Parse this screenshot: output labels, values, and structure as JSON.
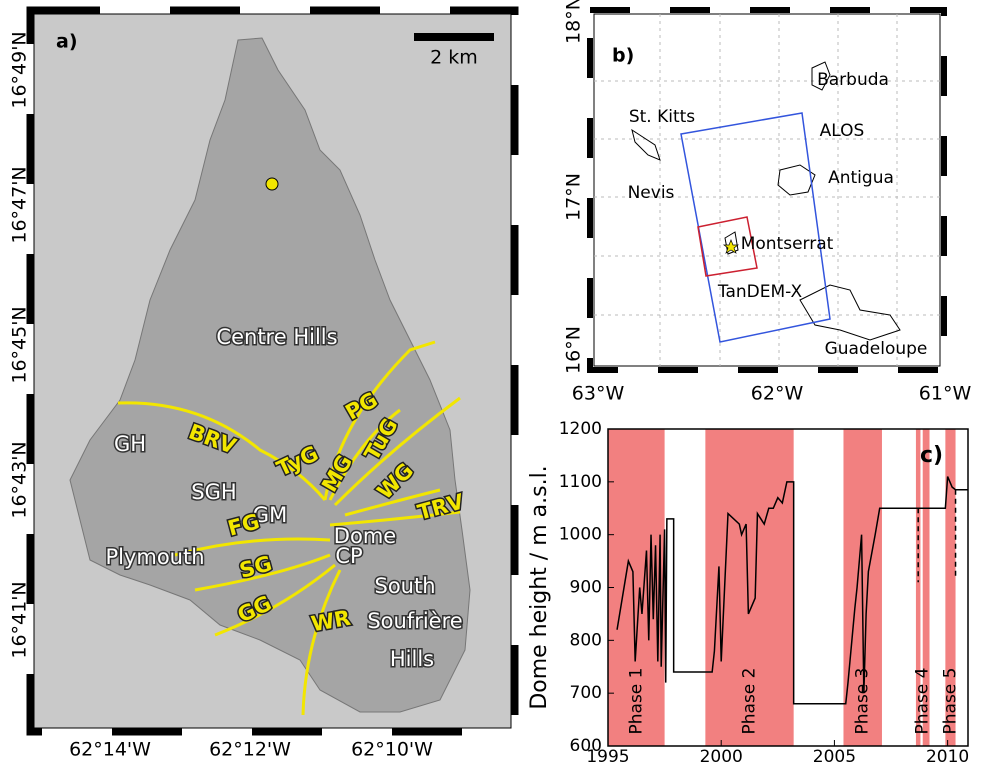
{
  "panel_a": {
    "label": "a)",
    "scale_bar": "2 km",
    "lat_ticks": [
      "16°49'N",
      "16°47'N",
      "16°45'N",
      "16°43'N",
      "16°41'N"
    ],
    "lon_ticks": [
      "62°14'W",
      "62°12'W",
      "62°10'W"
    ],
    "places": [
      "Centre Hills",
      "GH",
      "SGH",
      "GM",
      "Dome",
      "CP",
      "Plymouth"
    ],
    "south_soufriere_hills": [
      "South",
      "Soufrière",
      "Hills"
    ],
    "valleys": [
      "BRV",
      "TyG",
      "MG",
      "TuG",
      "PG",
      "WG",
      "TRV",
      "FG",
      "SG",
      "GG",
      "WR"
    ]
  },
  "panel_b": {
    "label": "b)",
    "lat_ticks": [
      "18°N",
      "17°N",
      "16°N"
    ],
    "lon_ticks": [
      "63°W",
      "62°W",
      "61°W"
    ],
    "places": [
      "Barbuda",
      "St. Kitts",
      "Nevis",
      "Antigua",
      "Montserrat",
      "Guadeloupe"
    ],
    "footprints": [
      {
        "name": "ALOS",
        "color": "#1a1aff"
      },
      {
        "name": "TanDEM-X",
        "color": "#d42020"
      }
    ]
  },
  "chart_data": {
    "type": "line",
    "label": "c)",
    "y_label": "Dome height / m a.s.l.",
    "xlim": [
      1995,
      2010.9
    ],
    "xticks": [
      1995,
      2000,
      2005,
      2010
    ],
    "ylim": [
      600,
      1200
    ],
    "yticks": [
      600,
      700,
      800,
      900,
      1000,
      1100,
      1200
    ],
    "color": "#000000",
    "phase_color": "#f28080",
    "phases": [
      {
        "name": "Phase 1",
        "spans": [
          [
            1995.0,
            1997.5
          ]
        ]
      },
      {
        "name": "Phase 2",
        "spans": [
          [
            1999.3,
            2003.2
          ]
        ]
      },
      {
        "name": "Phase 3",
        "spans": [
          [
            2005.4,
            2007.1
          ]
        ]
      },
      {
        "name": "Phase 4",
        "spans": [
          [
            2008.6,
            2008.8
          ],
          [
            2008.9,
            2009.2
          ]
        ]
      },
      {
        "name": "Phase 5",
        "spans": [
          [
            2009.9,
            2010.35
          ]
        ]
      }
    ],
    "x": [
      1995.4,
      1995.9,
      1996.1,
      1996.2,
      1996.4,
      1996.5,
      1996.7,
      1996.8,
      1996.9,
      1997.0,
      1997.1,
      1997.2,
      1997.3,
      1997.35,
      1997.5,
      1997.55,
      1997.6,
      1997.9,
      1997.9,
      1999.6,
      1999.7,
      1999.9,
      2000.0,
      2000.3,
      2000.8,
      2000.9,
      2001.1,
      2001.2,
      2001.5,
      2001.6,
      2001.9,
      2002.1,
      2002.3,
      2002.5,
      2002.7,
      2002.9,
      2003.2,
      2003.2,
      2005.5,
      2005.6,
      2005.9,
      2006.0,
      2006.2,
      2006.3,
      2006.4,
      2006.5,
      2006.8,
      2007.0,
      2009.9,
      2010.0,
      2010.2,
      2010.35,
      2010.9
    ],
    "values": [
      820,
      950,
      930,
      760,
      900,
      850,
      970,
      800,
      1000,
      840,
      980,
      760,
      1000,
      750,
      1010,
      720,
      1030,
      1030,
      740,
      740,
      780,
      940,
      760,
      1040,
      1020,
      1000,
      1020,
      850,
      880,
      1040,
      1020,
      1050,
      1050,
      1070,
      1060,
      1100,
      1100,
      680,
      680,
      720,
      860,
      900,
      1000,
      700,
      850,
      930,
      1000,
      1050,
      1050,
      1110,
      1090,
      1085,
      1085
    ],
    "drops": [
      {
        "x": 2008.7,
        "top": 1050,
        "bottom": 910
      },
      {
        "x": 2010.35,
        "top": 1085,
        "bottom": 920
      }
    ]
  }
}
